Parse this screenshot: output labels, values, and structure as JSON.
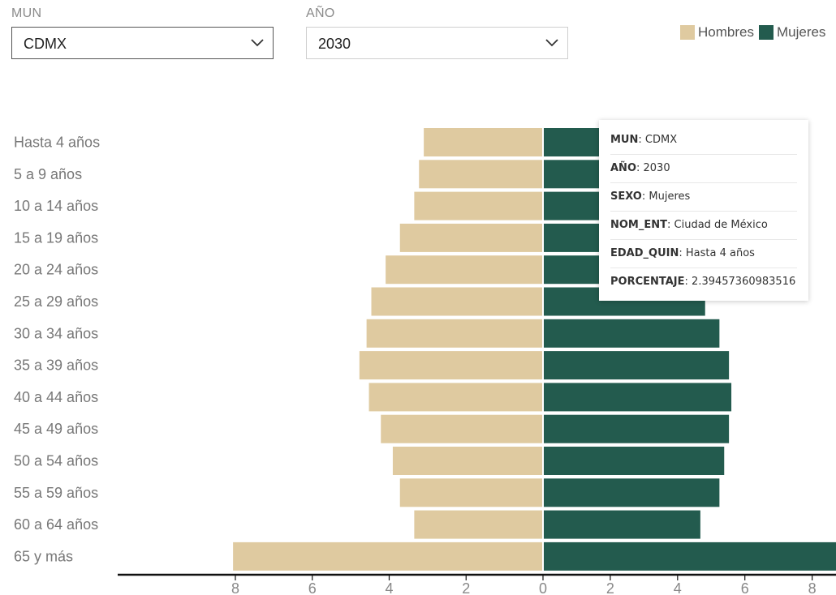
{
  "controls": {
    "mun": {
      "label": "MUN",
      "value": "CDMX"
    },
    "anio": {
      "label": "AÑO",
      "value": "2030"
    }
  },
  "legend": [
    {
      "name": "Hombres",
      "color": "#dfcaa0"
    },
    {
      "name": "Mujeres",
      "color": "#235b4e"
    }
  ],
  "tooltip": {
    "rows": [
      {
        "key": "MUN",
        "value": "CDMX"
      },
      {
        "key": "AÑO",
        "value": "2030"
      },
      {
        "key": "SEXO",
        "value": "Mujeres"
      },
      {
        "key": "NOM_ENT",
        "value": "Ciudad de México"
      },
      {
        "key": "EDAD_QUIN",
        "value": "Hasta 4 años"
      },
      {
        "key": "PORCENTAJE",
        "value": "2.39457360983516"
      }
    ]
  },
  "chart_data": {
    "type": "bar",
    "orientation": "horizontal",
    "categories": [
      "Hasta 4 años",
      "5 a 9 años",
      "10 a 14 años",
      "15 a 19 años",
      "20 a 24 años",
      "25 a 29 años",
      "30 a 34 años",
      "35 a 39 años",
      "40 a 44 años",
      "45 a 49 años",
      "50 a 54 años",
      "55 a 59 años",
      "60 a 64 años",
      "65 y más"
    ],
    "series": [
      {
        "name": "Hombres",
        "color": "#dfcaa0",
        "values": [
          2.5,
          2.6,
          2.7,
          3.0,
          3.3,
          3.6,
          3.7,
          3.85,
          3.65,
          3.4,
          3.15,
          3.0,
          2.7,
          6.5
        ]
      },
      {
        "name": "Mujeres",
        "color": "#235b4e",
        "values": [
          2.39,
          2.5,
          2.6,
          2.8,
          3.1,
          3.4,
          3.7,
          3.9,
          3.95,
          3.9,
          3.8,
          3.7,
          3.3,
          8.5
        ]
      }
    ],
    "xticks": [
      8,
      6,
      4,
      2,
      0,
      2,
      4,
      6,
      8
    ],
    "xlim": [
      -8.5,
      8.5
    ],
    "xlabel": "",
    "ylabel": "",
    "title": ""
  }
}
